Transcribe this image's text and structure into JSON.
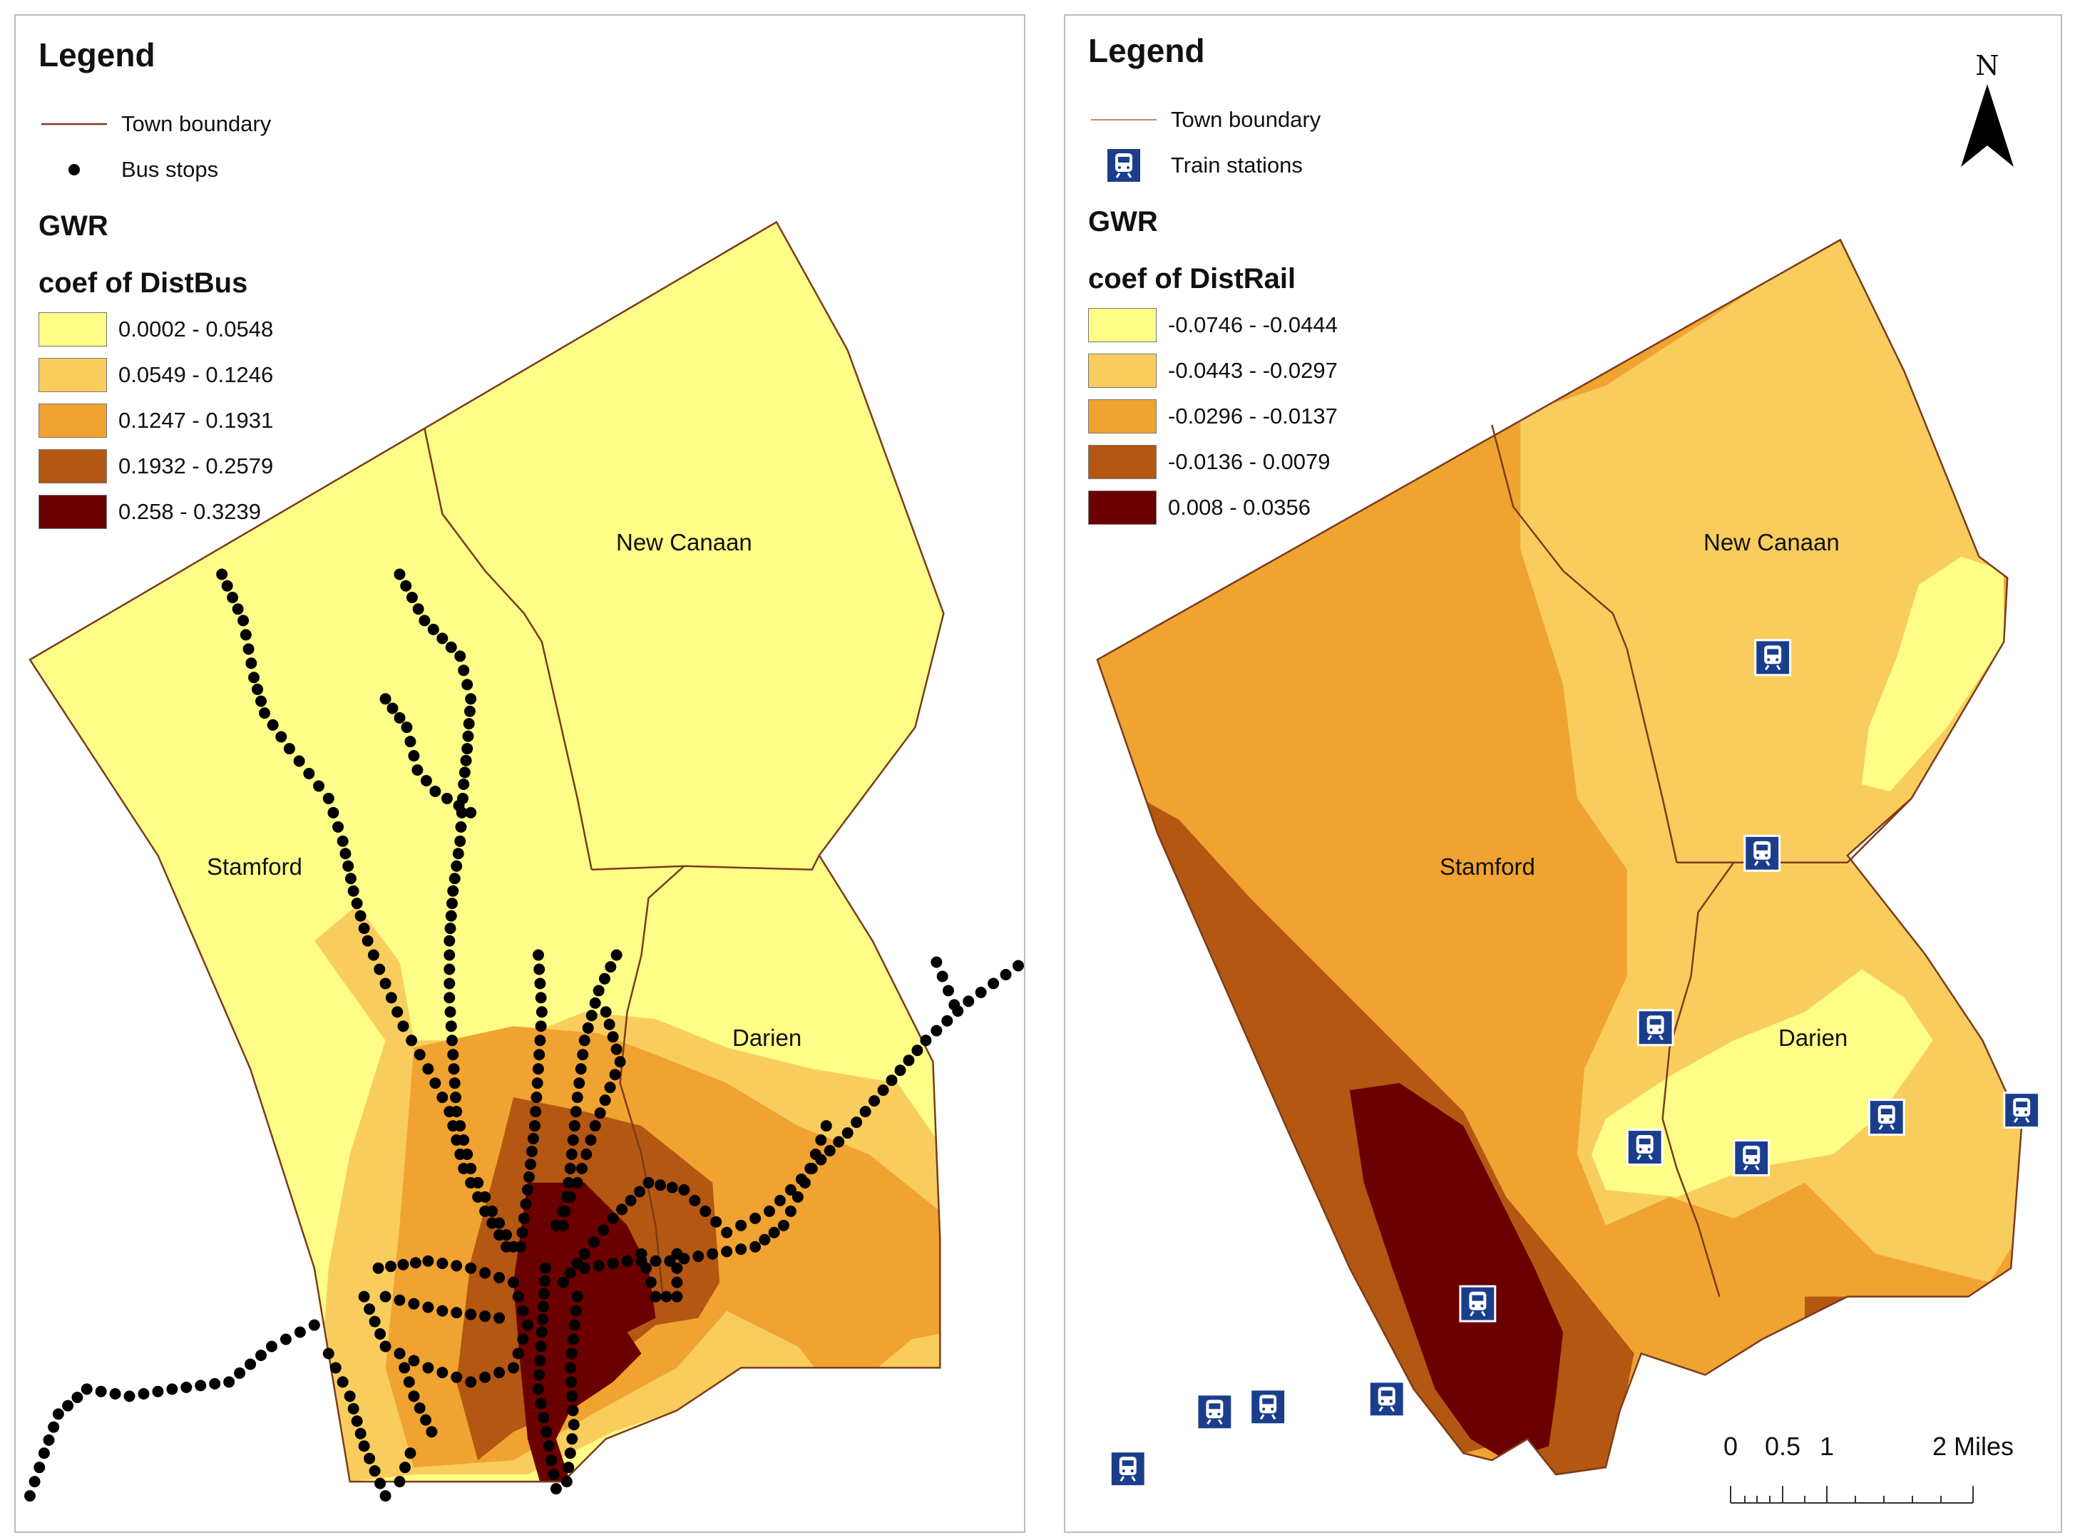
{
  "left_map": {
    "legend": {
      "title": "Legend",
      "items": [
        {
          "label": "Town boundary",
          "symbol": "line"
        },
        {
          "label": "Bus stops",
          "symbol": "dot"
        }
      ],
      "gwr_title": "GWR",
      "coef_title": "coef of DistBus",
      "classes": [
        {
          "label": "0.0002 - 0.0548",
          "color": "#fdfd88"
        },
        {
          "label": "0.0549 - 0.1246",
          "color": "#f9cd5d"
        },
        {
          "label": "0.1247 - 0.1931",
          "color": "#f0a330"
        },
        {
          "label": "0.1932 - 0.2579",
          "color": "#b35712"
        },
        {
          "label": "0.258 - 0.3239",
          "color": "#6b0000"
        }
      ]
    },
    "towns": [
      {
        "name": "New Canaan"
      },
      {
        "name": "Stamford"
      },
      {
        "name": "Darien"
      }
    ]
  },
  "right_map": {
    "legend": {
      "title": "Legend",
      "items": [
        {
          "label": "Town boundary",
          "symbol": "line"
        },
        {
          "label": "Train stations",
          "symbol": "train-icon"
        }
      ],
      "gwr_title": "GWR",
      "coef_title": "coef of DistRail",
      "classes": [
        {
          "label": "-0.0746 - -0.0444",
          "color": "#fdfd88"
        },
        {
          "label": "-0.0443 - -0.0297",
          "color": "#f9cd5d"
        },
        {
          "label": "-0.0296 - -0.0137",
          "color": "#f0a330"
        },
        {
          "label": "-0.0136 - 0.0079",
          "color": "#b35712"
        },
        {
          "label": "0.008 - 0.0356",
          "color": "#6b0000"
        }
      ]
    },
    "towns": [
      {
        "name": "New Canaan"
      },
      {
        "name": "Stamford"
      },
      {
        "name": "Darien"
      }
    ],
    "north_arrow": {
      "label": "N"
    },
    "scale_bar": {
      "labels": [
        "0",
        "0.5",
        "1",
        "2 Miles"
      ]
    }
  },
  "colors": {
    "boundary": "#7a3b1a",
    "station_icon": "#1a3e8c",
    "bus_stop": "#000000"
  }
}
